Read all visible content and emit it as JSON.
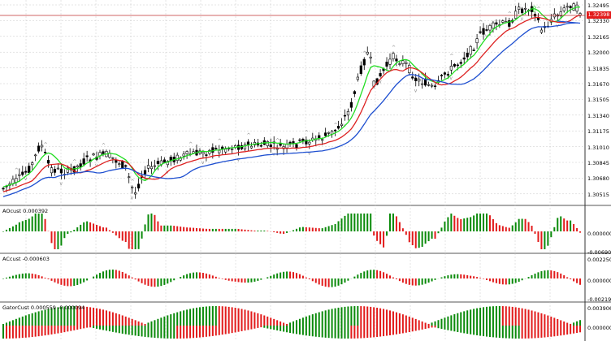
{
  "main_axis": {
    "labels": [
      "1.32495",
      "1.32330",
      "1.32165",
      "1.32000",
      "1.31835",
      "1.31670",
      "1.31505",
      "1.31340",
      "1.31175",
      "1.31010",
      "1.30845",
      "1.30680",
      "1.30515"
    ],
    "current_price": "1.32398"
  },
  "panels": [
    {
      "title": "AOcust 0.000392",
      "scale": [
        "0.000000",
        "-0.006906"
      ]
    },
    {
      "title": "ACcust -0.000603",
      "scale": [
        "0.0022509",
        "0.000000",
        "-0.0021956"
      ]
    },
    {
      "title": "GatorCust 0.000559 -0.000094",
      "scale": [
        "0.003906",
        "0.000000"
      ]
    }
  ],
  "colors": {
    "bull": "#000000",
    "up_bar": "#0a8a0a",
    "down_bar": "#e21b1b",
    "ma_fast": "#22dd22",
    "ma_mid": "#dd2222",
    "ma_slow": "#1e4fd0",
    "grid": "#c8c8c8",
    "price_line": "#c03030",
    "arrow": "#2ec02e"
  },
  "icons": [
    "up-arrow-icon",
    "fractal-marker-icon"
  ]
}
